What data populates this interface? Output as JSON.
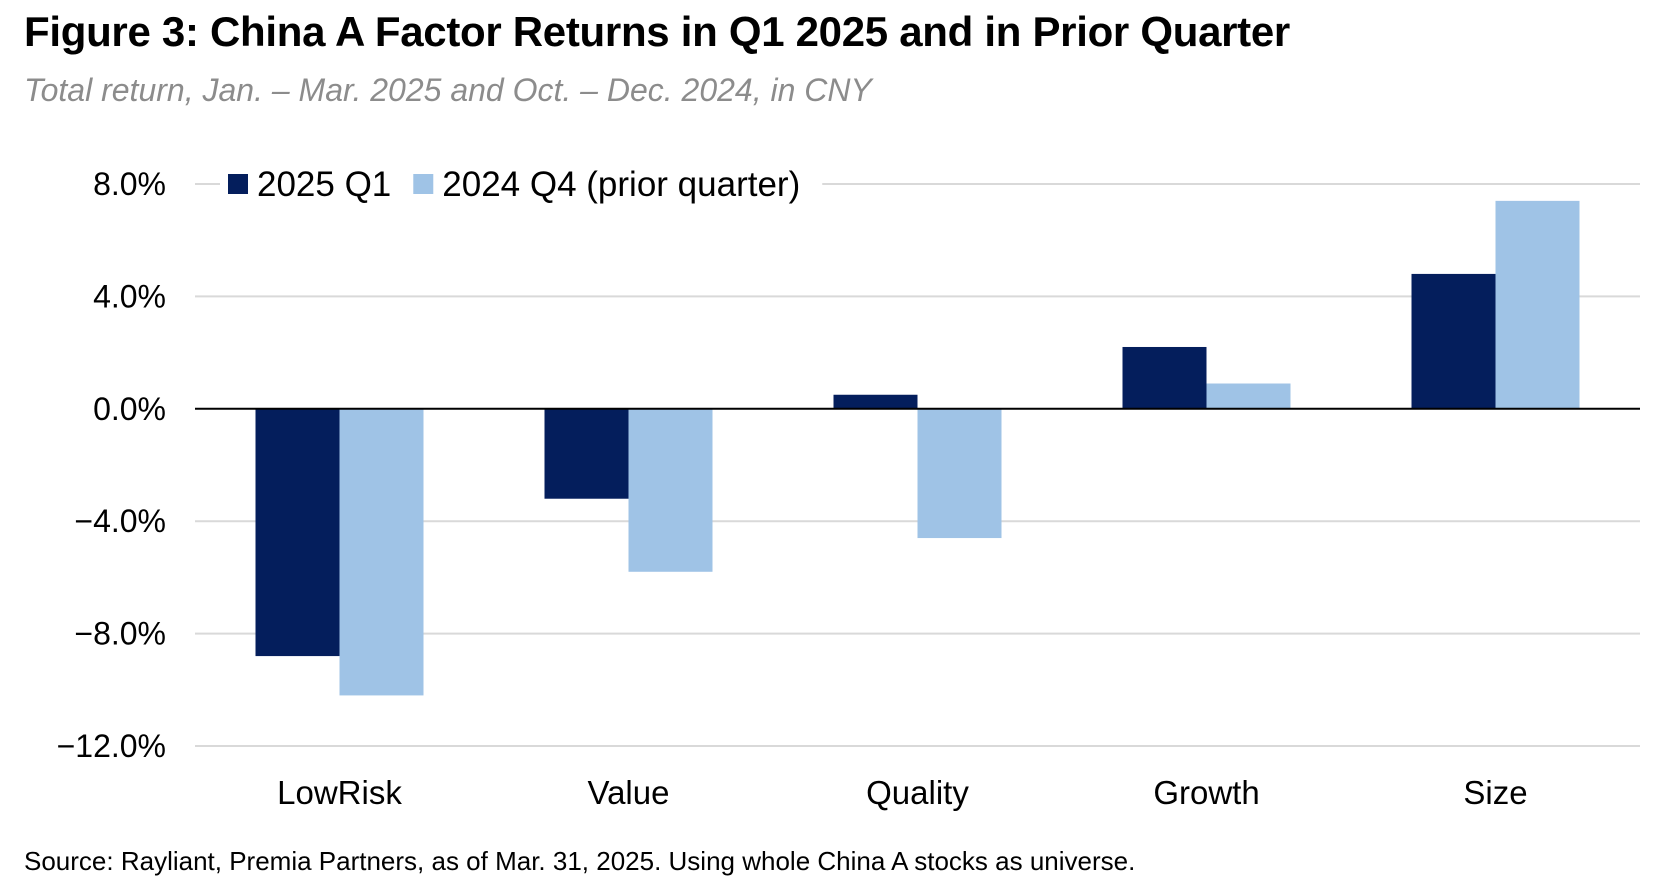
{
  "header": {
    "title": "Figure 3: China A Factor Returns in Q1 2025 and in Prior Quarter",
    "subtitle": "Total return, Jan. – Mar. 2025 and Oct. – Dec. 2024, in CNY"
  },
  "footer": {
    "source": "Source: Rayliant, Premia Partners, as of Mar. 31, 2025. Using whole China A stocks as universe."
  },
  "colors": {
    "series_2025_q1": "#041e5c",
    "series_2024_q4": "#9fc3e6",
    "grid": "#d9d9d9",
    "zero_line": "#000000"
  },
  "chart_data": {
    "type": "bar",
    "title": "Figure 3: China A Factor Returns in Q1 2025 and in Prior Quarter",
    "subtitle": "Total return, Jan. – Mar. 2025 and Oct. – Dec. 2024, in CNY",
    "xlabel": "",
    "ylabel": "",
    "categories": [
      "LowRisk",
      "Value",
      "Quality",
      "Growth",
      "Size"
    ],
    "series": [
      {
        "name": "2025 Q1",
        "color": "#041e5c",
        "values": [
          -8.8,
          -3.2,
          0.5,
          2.2,
          4.8
        ]
      },
      {
        "name": "2024 Q4 (prior quarter)",
        "color": "#9fc3e6",
        "values": [
          -10.2,
          -5.8,
          -4.6,
          0.9,
          7.4
        ]
      }
    ],
    "ylim": [
      -12,
      8
    ],
    "yticks": [
      8,
      4,
      0,
      -4,
      -8,
      -12
    ],
    "ytick_labels": [
      "8.0%",
      "4.0%",
      "0.0%",
      "−4.0%",
      "−8.0%",
      "−12.0%"
    ],
    "grid": true,
    "legend_position": "top-left"
  }
}
